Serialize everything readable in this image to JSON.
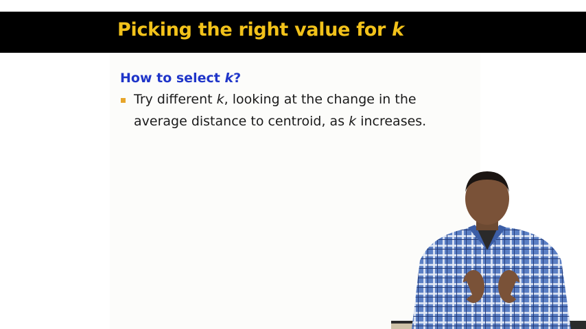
{
  "slide": {
    "title_prefix": "Picking the right value for ",
    "title_var": "k",
    "heading_prefix": "How to select ",
    "heading_var": "k",
    "heading_suffix": "?",
    "bullet": {
      "line1_a": "Try different ",
      "line1_k": "k",
      "line1_b": ", looking at the change in the",
      "line2_a": "average distance to centroid, as ",
      "line2_k": "k",
      "line2_b": " increases."
    }
  },
  "colors": {
    "title_bar": "#000000",
    "title_text": "#f2c21a",
    "heading": "#1f35c9",
    "bullet_marker": "#e7a52a",
    "shirt": "#4a6fb3"
  },
  "presenter": {
    "description_icon": "person-presenter-icon"
  }
}
